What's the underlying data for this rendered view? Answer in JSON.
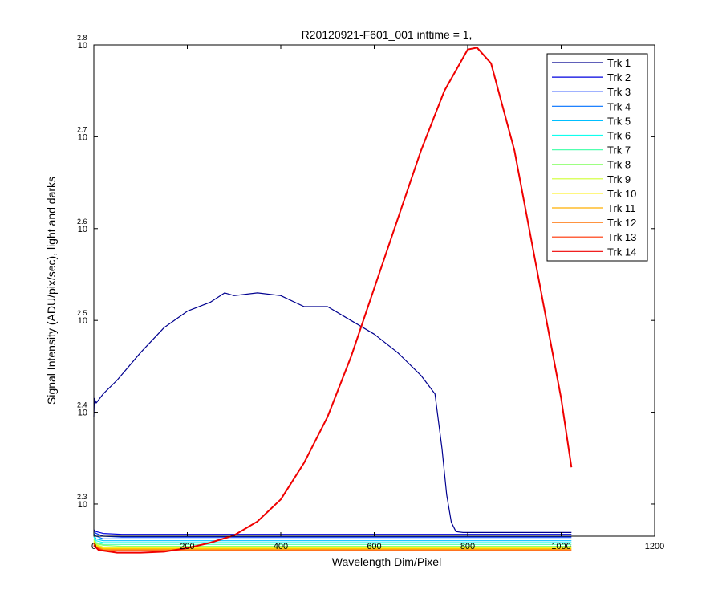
{
  "chart_data": {
    "type": "line",
    "title": "R20120921-F601_001 inttime = 1,",
    "xlabel": "Wavelength Dim/Pixel",
    "ylabel": "Signal Intensity (ADU/pix/sec), light and darks",
    "xlim": [
      0,
      1200
    ],
    "ylim_log10": [
      2.265,
      2.8
    ],
    "yscale": "log",
    "grid": false,
    "legend_position": "top-right",
    "x_ticks": [
      "0",
      "200",
      "400",
      "600",
      "800",
      "1000",
      "1200"
    ],
    "y_ticks": [
      {
        "base": "10",
        "exponent": "2.3"
      },
      {
        "base": "10",
        "exponent": "2.4"
      },
      {
        "base": "10",
        "exponent": "2.5"
      },
      {
        "base": "10",
        "exponent": "2.6"
      },
      {
        "base": "10",
        "exponent": "2.7"
      },
      {
        "base": "10",
        "exponent": "2.8"
      }
    ],
    "series": [
      {
        "name": "Trk 1",
        "color": "#00008F",
        "x": [
          0,
          1,
          5,
          20,
          50,
          100,
          150,
          200,
          250,
          280,
          300,
          350,
          400,
          450,
          500,
          550,
          600,
          650,
          700,
          730,
          745,
          755,
          765,
          775,
          790,
          1022
        ],
        "log10_y": [
          2.395,
          2.415,
          2.41,
          2.42,
          2.435,
          2.465,
          2.492,
          2.51,
          2.52,
          2.53,
          2.527,
          2.53,
          2.527,
          2.515,
          2.515,
          2.5,
          2.485,
          2.465,
          2.44,
          2.42,
          2.36,
          2.31,
          2.28,
          2.27,
          2.269,
          2.269
        ]
      },
      {
        "name": "Trk 2",
        "color": "#0000DF",
        "x": [
          0,
          5,
          20,
          60,
          1022
        ],
        "log10_y": [
          2.272,
          2.27,
          2.268,
          2.267,
          2.267
        ]
      },
      {
        "name": "Trk 3",
        "color": "#0030FF",
        "x": [
          0,
          5,
          20,
          60,
          1022
        ],
        "log10_y": [
          2.27,
          2.268,
          2.265,
          2.264,
          2.264
        ]
      },
      {
        "name": "Trk 4",
        "color": "#0070FF",
        "x": [
          0,
          5,
          20,
          60,
          1022
        ],
        "log10_y": [
          2.268,
          2.265,
          2.262,
          2.262,
          2.262
        ]
      },
      {
        "name": "Trk 5",
        "color": "#00BFFF",
        "x": [
          0,
          5,
          20,
          60,
          1022
        ],
        "log10_y": [
          2.266,
          2.262,
          2.26,
          2.26,
          2.26
        ]
      },
      {
        "name": "Trk 6",
        "color": "#10FFEF",
        "x": [
          0,
          5,
          20,
          60,
          1022
        ],
        "log10_y": [
          2.264,
          2.26,
          2.258,
          2.258,
          2.258
        ]
      },
      {
        "name": "Trk 7",
        "color": "#50FFAF",
        "x": [
          0,
          5,
          20,
          60,
          1022
        ],
        "log10_y": [
          2.262,
          2.258,
          2.256,
          2.256,
          2.256
        ]
      },
      {
        "name": "Trk 8",
        "color": "#8FFF70",
        "x": [
          0,
          5,
          20,
          60,
          1022
        ],
        "log10_y": [
          2.261,
          2.257,
          2.255,
          2.254,
          2.254
        ]
      },
      {
        "name": "Trk 9",
        "color": "#CFFF30",
        "x": [
          0,
          5,
          20,
          60,
          1022
        ],
        "log10_y": [
          2.26,
          2.256,
          2.253,
          2.253,
          2.253
        ]
      },
      {
        "name": "Trk 10",
        "color": "#FFEF00",
        "x": [
          0,
          5,
          20,
          60,
          1022
        ],
        "log10_y": [
          2.259,
          2.255,
          2.252,
          2.252,
          2.252
        ]
      },
      {
        "name": "Trk 11",
        "color": "#FFAF00",
        "x": [
          0,
          5,
          20,
          60,
          1022
        ],
        "log10_y": [
          2.258,
          2.254,
          2.251,
          2.251,
          2.251
        ]
      },
      {
        "name": "Trk 12",
        "color": "#FF7000",
        "x": [
          0,
          5,
          20,
          60,
          1022
        ],
        "log10_y": [
          2.257,
          2.253,
          2.25,
          2.25,
          2.25
        ]
      },
      {
        "name": "Trk 13",
        "color": "#FF3000",
        "x": [
          0,
          5,
          20,
          60,
          1022
        ],
        "log10_y": [
          2.256,
          2.252,
          2.249,
          2.249,
          2.249
        ]
      },
      {
        "name": "Trk 14",
        "color": "#EF0000",
        "x": [
          0,
          10,
          50,
          100,
          150,
          200,
          250,
          300,
          350,
          400,
          450,
          500,
          550,
          600,
          650,
          700,
          750,
          800,
          820,
          850,
          900,
          950,
          1000,
          1022
        ],
        "log10_y": [
          2.255,
          2.25,
          2.247,
          2.247,
          2.248,
          2.252,
          2.258,
          2.266,
          2.281,
          2.305,
          2.345,
          2.395,
          2.46,
          2.535,
          2.61,
          2.685,
          2.75,
          2.795,
          2.797,
          2.78,
          2.685,
          2.55,
          2.415,
          2.34
        ]
      }
    ]
  }
}
